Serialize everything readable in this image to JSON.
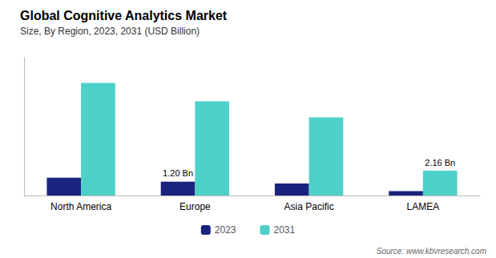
{
  "chart_data": {
    "type": "bar",
    "title": "Global Cognitive Analytics Market",
    "subtitle": "Size, By Region, 2023, 2031 (USD Billion)",
    "source": "Source: www.kbvresearch.com",
    "categories": [
      "North America",
      "Europe",
      "Asia Pacific",
      "LAMEA"
    ],
    "series": [
      {
        "name": "2023",
        "color": "#1a237e",
        "values": [
          1.55,
          1.2,
          1.05,
          0.38
        ]
      },
      {
        "name": "2031",
        "color": "#4dd0c8",
        "values": [
          9.8,
          8.2,
          6.8,
          2.16
        ]
      }
    ],
    "annotations": [
      {
        "category": "Europe",
        "series": "2023",
        "text": "1.20 Bn"
      },
      {
        "category": "LAMEA",
        "series": "2031",
        "text": "2.16 Bn"
      }
    ],
    "ylim": [
      0,
      12.0
    ],
    "yticks": [],
    "tick_labels": "x",
    "grid": false,
    "legend": "bottom"
  }
}
